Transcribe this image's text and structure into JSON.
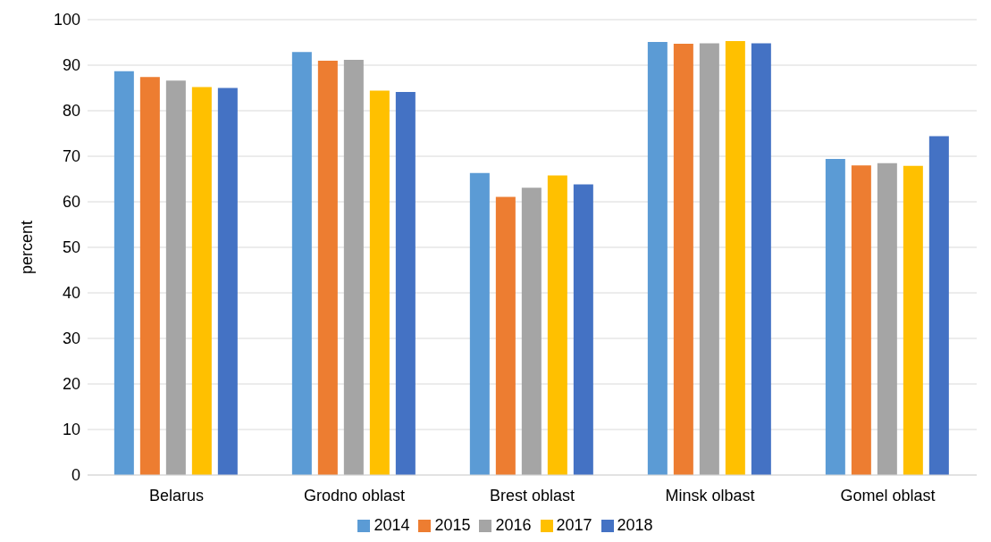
{
  "chart_data": {
    "type": "bar",
    "ylabel": "percent",
    "categories": [
      "Belarus",
      "Grodno oblast",
      "Brest oblast",
      "Minsk olbast",
      "Gomel oblast"
    ],
    "series": [
      {
        "name": "2014",
        "color": "#5b9bd5",
        "values": [
          88.7,
          92.9,
          66.3,
          95.1,
          69.4
        ]
      },
      {
        "name": "2015",
        "color": "#ed7d31",
        "values": [
          87.4,
          91.0,
          61.1,
          94.7,
          68.0
        ]
      },
      {
        "name": "2016",
        "color": "#a5a5a5",
        "values": [
          86.6,
          91.2,
          63.1,
          94.8,
          68.5
        ]
      },
      {
        "name": "2017",
        "color": "#ffc000",
        "values": [
          85.2,
          84.4,
          65.8,
          95.3,
          67.9
        ]
      },
      {
        "name": "2018",
        "color": "#4472c4",
        "values": [
          85.0,
          84.1,
          63.8,
          94.8,
          74.4
        ]
      }
    ],
    "ylim": [
      0,
      100
    ],
    "yticks": [
      0,
      10,
      20,
      30,
      40,
      50,
      60,
      70,
      80,
      90,
      100
    ],
    "grid": "y",
    "legend": "bottom"
  }
}
